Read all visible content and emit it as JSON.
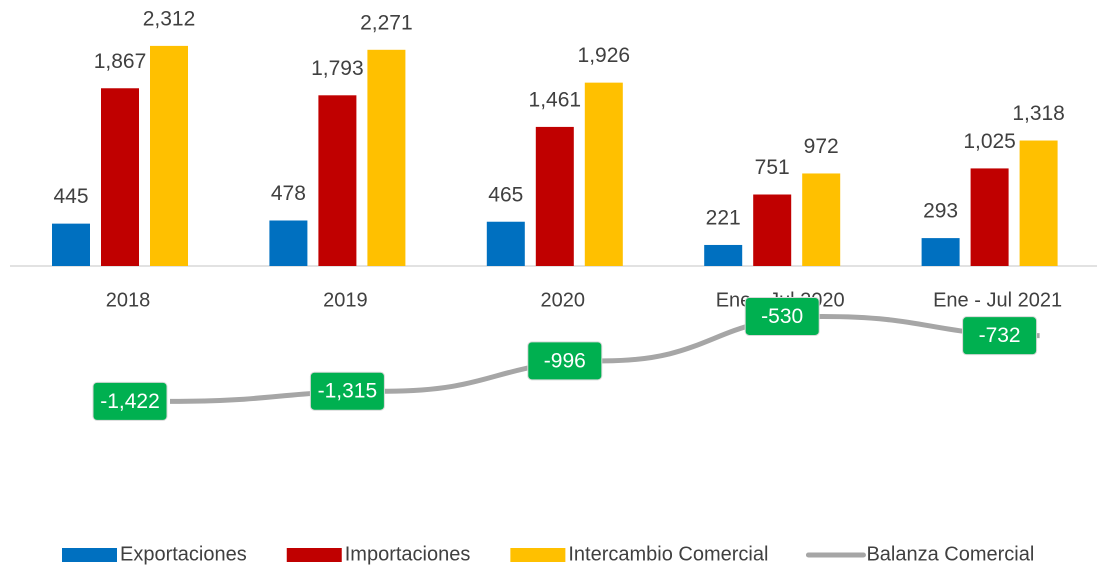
{
  "chart_data": {
    "type": "bar-line",
    "categories": [
      "2018",
      "2019",
      "2020",
      "Ene - Jul 2020",
      "Ene - Jul 2021"
    ],
    "ylim": [
      -2500,
      2500
    ],
    "series": [
      {
        "name": "Exportaciones",
        "type": "bar",
        "color": "#0070c0",
        "values": [
          445,
          478,
          465,
          221,
          293
        ],
        "value_labels": [
          "445",
          "478",
          "465",
          "221",
          "293"
        ]
      },
      {
        "name": "Importaciones",
        "type": "bar",
        "color": "#c00000",
        "values": [
          1867,
          1793,
          1461,
          751,
          1025
        ],
        "value_labels": [
          "1,867",
          "1,793",
          "1,461",
          "751",
          "1,025"
        ]
      },
      {
        "name": "Intercambio Comercial",
        "type": "bar",
        "color": "#ffc000",
        "values": [
          2312,
          2271,
          1926,
          972,
          1318
        ],
        "value_labels": [
          "2,312",
          "2,271",
          "1,926",
          "972",
          "1,318"
        ]
      },
      {
        "name": "Balanza Comercial",
        "type": "line",
        "color": "#a6a6a6",
        "label_color": "#00b050",
        "values": [
          -1422,
          -1315,
          -996,
          -530,
          -732
        ],
        "value_labels": [
          "-1,422",
          "-1,315",
          "-996",
          "-530",
          "-732"
        ]
      }
    ],
    "legend": "bottom"
  }
}
